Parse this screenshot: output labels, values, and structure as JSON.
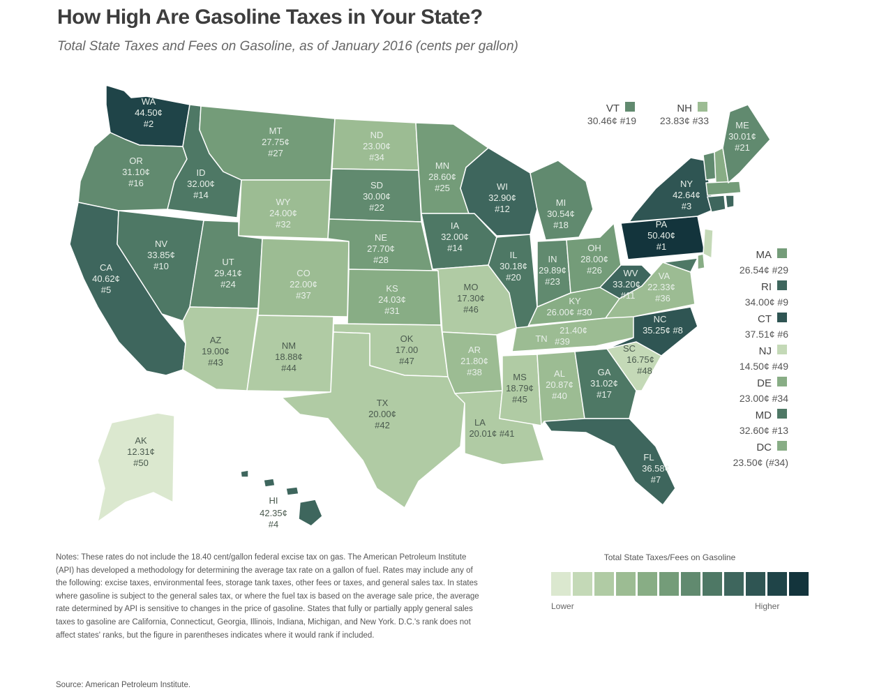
{
  "title": "How High Are Gasoline Taxes in Your State?",
  "subtitle": "Total State Taxes and Fees on Gasoline, as of January 2016 (cents per gallon)",
  "colors": {
    "scale": [
      "#dbe8cf",
      "#c4d9b7",
      "#b0cba4",
      "#9cbc93",
      "#88ad85",
      "#749c79",
      "#618a6f",
      "#4e7865",
      "#3e665d",
      "#2f5553",
      "#1f4448",
      "#13343c"
    ]
  },
  "states": {
    "WA": {
      "abbr": "WA",
      "value": "44.50¢",
      "rank": "#2"
    },
    "OR": {
      "abbr": "OR",
      "value": "31.10¢",
      "rank": "#16"
    },
    "CA": {
      "abbr": "CA",
      "value": "40.62¢",
      "rank": "#5"
    },
    "ID": {
      "abbr": "ID",
      "value": "32.00¢",
      "rank": "#14"
    },
    "NV": {
      "abbr": "NV",
      "value": "33.85¢",
      "rank": "#10"
    },
    "MT": {
      "abbr": "MT",
      "value": "27.75¢",
      "rank": "#27"
    },
    "WY": {
      "abbr": "WY",
      "value": "24.00¢",
      "rank": "#32"
    },
    "UT": {
      "abbr": "UT",
      "value": "29.41¢",
      "rank": "#24"
    },
    "AZ": {
      "abbr": "AZ",
      "value": "19.00¢",
      "rank": "#43"
    },
    "CO": {
      "abbr": "CO",
      "value": "22.00¢",
      "rank": "#37"
    },
    "NM": {
      "abbr": "NM",
      "value": "18.88¢",
      "rank": "#44"
    },
    "ND": {
      "abbr": "ND",
      "value": "23.00¢",
      "rank": "#34"
    },
    "SD": {
      "abbr": "SD",
      "value": "30.00¢",
      "rank": "#22"
    },
    "NE": {
      "abbr": "NE",
      "value": "27.70¢",
      "rank": "#28"
    },
    "KS": {
      "abbr": "KS",
      "value": "24.03¢",
      "rank": "#31"
    },
    "OK": {
      "abbr": "OK",
      "value": "17.00",
      "rank": "#47"
    },
    "TX": {
      "abbr": "TX",
      "value": "20.00¢",
      "rank": "#42"
    },
    "MN": {
      "abbr": "MN",
      "value": "28.60¢",
      "rank": "#25"
    },
    "IA": {
      "abbr": "IA",
      "value": "32.00¢",
      "rank": "#14"
    },
    "MO": {
      "abbr": "MO",
      "value": "17.30¢",
      "rank": "#46"
    },
    "AR": {
      "abbr": "AR",
      "value": "21.80¢",
      "rank": "#38"
    },
    "LA": {
      "abbr": "LA",
      "value": "20.01¢ #41",
      "rank": ""
    },
    "WI": {
      "abbr": "WI",
      "value": "32.90¢",
      "rank": "#12"
    },
    "IL": {
      "abbr": "IL",
      "value": "30.18¢",
      "rank": "#20"
    },
    "MI": {
      "abbr": "MI",
      "value": "30.54¢",
      "rank": "#18"
    },
    "IN": {
      "abbr": "IN",
      "value": "29.89¢",
      "rank": "#23"
    },
    "OH": {
      "abbr": "OH",
      "value": "28.00¢",
      "rank": "#26"
    },
    "KY": {
      "abbr": "KY",
      "value": "26.00¢ #30",
      "rank": ""
    },
    "TN": {
      "abbr": "TN",
      "value": "21.40¢",
      "rank": "#39"
    },
    "MS": {
      "abbr": "MS",
      "value": "18.79¢",
      "rank": "#45"
    },
    "AL": {
      "abbr": "AL",
      "value": "20.87¢",
      "rank": "#40"
    },
    "GA": {
      "abbr": "GA",
      "value": "31.02¢",
      "rank": "#17"
    },
    "FL": {
      "abbr": "FL",
      "value": "36.58¢",
      "rank": "#7"
    },
    "SC": {
      "abbr": "SC",
      "value": "16.75¢",
      "rank": "#48"
    },
    "NC": {
      "abbr": "NC",
      "value": "35.25¢ #8",
      "rank": ""
    },
    "VA": {
      "abbr": "VA",
      "value": "22.33¢",
      "rank": "#36"
    },
    "WV": {
      "abbr": "WV",
      "value": "33.20¢",
      "rank": "#11"
    },
    "PA": {
      "abbr": "PA",
      "value": "50.40¢",
      "rank": "#1"
    },
    "NY": {
      "abbr": "NY",
      "value": "42.64¢",
      "rank": "#3"
    },
    "ME": {
      "abbr": "ME",
      "value": "30.01¢",
      "rank": "#21"
    },
    "AK": {
      "abbr": "AK",
      "value": "12.31¢",
      "rank": "#50"
    },
    "HI": {
      "abbr": "HI",
      "value": "42.35¢",
      "rank": "#4"
    }
  },
  "callouts_top": [
    {
      "abbr": "VT",
      "value": "30.46¢ #19"
    },
    {
      "abbr": "NH",
      "value": "23.83¢ #33"
    }
  ],
  "callouts_side": [
    {
      "abbr": "MA",
      "value": "26.54¢ #29"
    },
    {
      "abbr": "RI",
      "value": "34.00¢ #9"
    },
    {
      "abbr": "CT",
      "value": "37.51¢ #6"
    },
    {
      "abbr": "NJ",
      "value": "14.50¢ #49"
    },
    {
      "abbr": "DE",
      "value": "23.00¢ #34"
    },
    {
      "abbr": "MD",
      "value": "32.60¢ #13"
    },
    {
      "abbr": "DC",
      "value": "23.50¢ (#34)"
    }
  ],
  "notes": "Notes: These rates do not include the 18.40 cent/gallon federal excise tax on gas. The American Petroleum Institute (API) has developed a methodology for determining the average tax rate on a gallon of fuel. Rates may include any of the following: excise taxes, environmental fees, storage tank taxes, other fees or taxes, and general sales tax. In states where gasoline is subject to the general sales tax, or where the fuel tax is based on the average sale price, the average rate determined by API is sensitive to changes in the price of gasoline. States that fully or partially apply general sales taxes to gasoline are California, Connecticut, Georgia, Illinois, Indiana, Michigan, and New York. D.C.'s rank does not affect states' ranks, but the figure in parentheses indicates where it would rank if included.",
  "source": "Source: American Petroleum Institute.",
  "legend": {
    "title": "Total State Taxes/Fees on Gasoline",
    "low": "Lower",
    "high": "Higher"
  }
}
